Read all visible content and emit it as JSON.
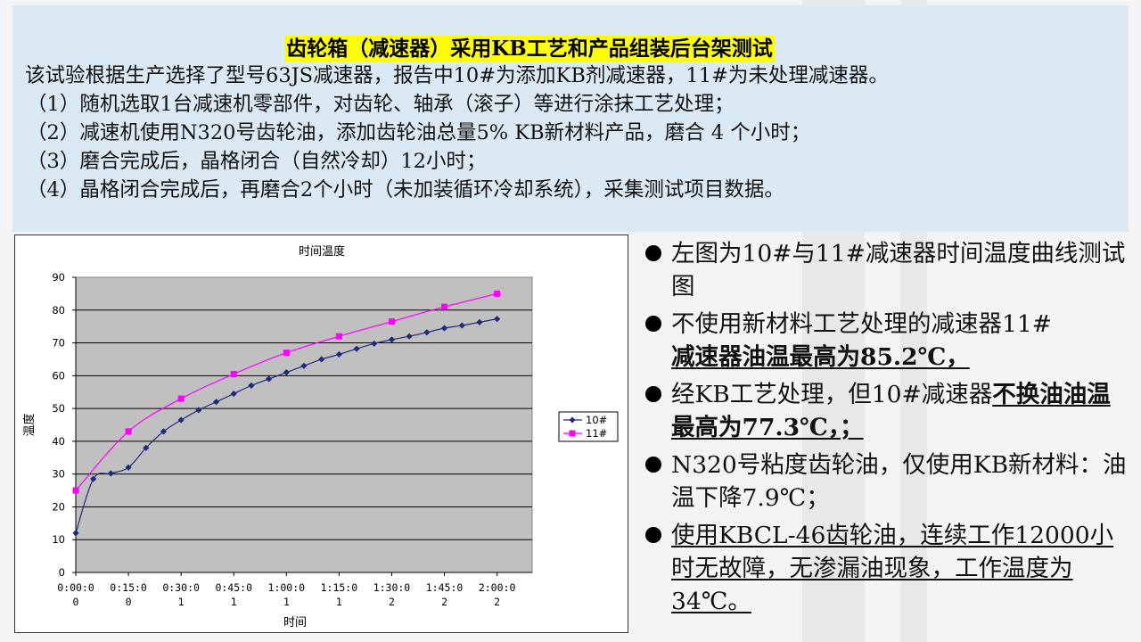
{
  "header": {
    "title": "齿轮箱（减速器）采用KB工艺和产品组装后台架测试",
    "lines": [
      "该试验根据生产选择了型号63JS减速器，报告中10#为添加KB剂减速器，11#为未处理减速器。",
      "（1）随机选取1台减速机零部件，对齿轮、轴承（滚子）等进行涂抹工艺处理；",
      "（2）减速机使用N320号齿轮油，添加齿轮油总量5% KB新材料产品，磨合 4 个小时；",
      "（3）磨合完成后，晶格闭合（自然冷却）12小时；",
      "（4）晶格闭合完成后，再磨合2个小时（未加装循环冷却系统），采集测试项目数据。"
    ]
  },
  "bullets": {
    "b1": "左图为10#与11#减速器时间温度曲线测试图",
    "b2_plain": "不使用新材料工艺处理的减速器11#",
    "b2_bold": "减速器油温最高为85.2℃，",
    "b3_plain": "经KB工艺处理，但10#减速器",
    "b3_bold": "不换油油温最高为77.3℃，；",
    "b4": "N320号粘度齿轮油，仅使用KB新材料：油温下降7.9℃；",
    "b5": "使用KBCL-46齿轮油，连续工作12000小时无故障，无渗漏油现象，工作温度为34℃。"
  },
  "colors": {
    "series_10": "#1f2a7a",
    "series_11": "#ff00ff",
    "plot_bg": "#c0c0c0",
    "header_bg": "#dbe9f5",
    "highlight": "#ffff00"
  },
  "chart_data": {
    "type": "line",
    "title": "时间温度",
    "xlabel": "时间",
    "ylabel": "温度",
    "ylim": [
      0,
      90
    ],
    "yticks": [
      0,
      10,
      20,
      30,
      40,
      50,
      60,
      70,
      80,
      90
    ],
    "xlim": [
      0,
      130
    ],
    "xticks": [
      {
        "value": 0,
        "line1": "0:00:0",
        "line2": "0"
      },
      {
        "value": 15,
        "line1": "0:15:0",
        "line2": "0"
      },
      {
        "value": 30,
        "line1": "0:30:0",
        "line2": "1"
      },
      {
        "value": 45,
        "line1": "0:45:0",
        "line2": "1"
      },
      {
        "value": 60,
        "line1": "1:00:0",
        "line2": "1"
      },
      {
        "value": 75,
        "line1": "1:15:0",
        "line2": "1"
      },
      {
        "value": 90,
        "line1": "1:30:0",
        "line2": "2"
      },
      {
        "value": 105,
        "line1": "1:45:0",
        "line2": "2"
      },
      {
        "value": 120,
        "line1": "2:00:0",
        "line2": "2"
      }
    ],
    "grid": true,
    "legend_position": "right",
    "series": [
      {
        "name": "10#",
        "marker": "diamond",
        "x": [
          0,
          5,
          10,
          15,
          20,
          25,
          30,
          35,
          40,
          45,
          50,
          55,
          60,
          65,
          70,
          75,
          80,
          85,
          90,
          95,
          100,
          105,
          110,
          115,
          120
        ],
        "y": [
          12,
          28.5,
          30.2,
          32,
          38,
          43,
          46.5,
          49.5,
          52,
          54.5,
          57,
          59,
          61,
          63,
          65,
          66.5,
          68.2,
          69.8,
          71,
          72,
          73.2,
          74.5,
          75.3,
          76.3,
          77.3
        ]
      },
      {
        "name": "11#",
        "marker": "square",
        "x": [
          0,
          15,
          30,
          45,
          60,
          75,
          90,
          105,
          120
        ],
        "y": [
          25,
          43,
          53,
          60.5,
          67,
          72,
          76.5,
          81,
          85
        ]
      }
    ]
  }
}
